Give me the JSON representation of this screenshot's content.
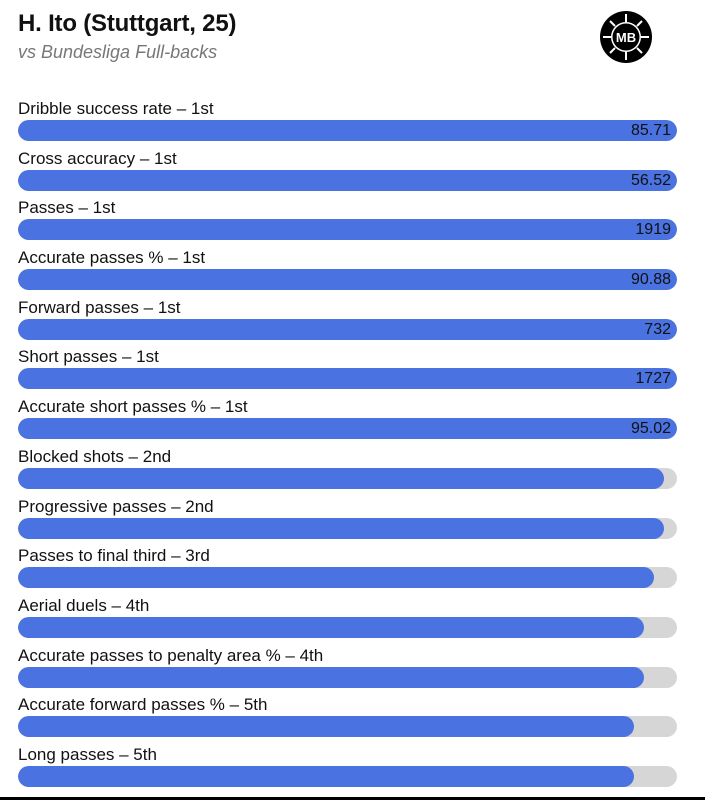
{
  "header": {
    "title": "H. Ito (Stuttgart, 25)",
    "subtitle": "vs Bundesliga Full-backs"
  },
  "logo": {
    "icon": "mb-badge-icon",
    "text": "MB"
  },
  "colors": {
    "bar": "#4a73e1",
    "track": "#d6d6d6"
  },
  "chart_data": {
    "type": "bar",
    "orientation": "horizontal",
    "xlim": [
      0,
      100
    ],
    "grid": false,
    "bars": [
      {
        "label": "Dribble success rate – 1st",
        "percentile": 100,
        "value": "85.71"
      },
      {
        "label": "Cross accuracy – 1st",
        "percentile": 100,
        "value": "56.52"
      },
      {
        "label": "Passes – 1st",
        "percentile": 100,
        "value": "1919"
      },
      {
        "label": "Accurate passes % – 1st",
        "percentile": 100,
        "value": "90.88"
      },
      {
        "label": "Forward passes – 1st",
        "percentile": 100,
        "value": "732"
      },
      {
        "label": "Short passes – 1st",
        "percentile": 100,
        "value": "1727"
      },
      {
        "label": "Accurate short passes % – 1st",
        "percentile": 100,
        "value": "95.02"
      },
      {
        "label": "Blocked shots – 2nd",
        "percentile": 98,
        "value": ""
      },
      {
        "label": "Progressive passes – 2nd",
        "percentile": 98,
        "value": ""
      },
      {
        "label": "Passes to final third – 3rd",
        "percentile": 96.5,
        "value": ""
      },
      {
        "label": "Aerial duels – 4th",
        "percentile": 95,
        "value": ""
      },
      {
        "label": "Accurate passes to penalty area % – 4th",
        "percentile": 95,
        "value": ""
      },
      {
        "label": "Accurate forward passes % – 5th",
        "percentile": 93.5,
        "value": ""
      },
      {
        "label": "Long passes – 5th",
        "percentile": 93.5,
        "value": ""
      }
    ]
  }
}
